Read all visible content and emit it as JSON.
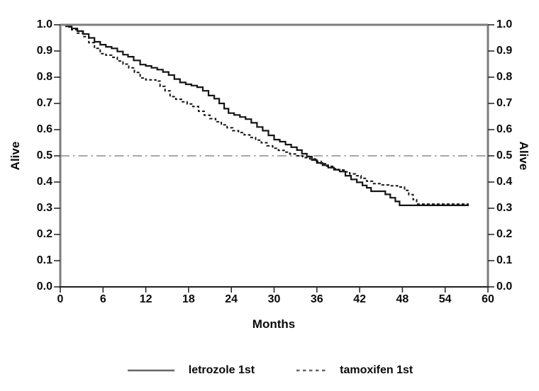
{
  "chart_data": {
    "type": "line",
    "subtype": "kaplan-meier-survival-step",
    "title": "",
    "xlabel": "Months",
    "ylabel_left": "Alive",
    "ylabel_right": "Alive",
    "xlim": [
      0,
      60
    ],
    "ylim": [
      0.0,
      1.0
    ],
    "x_ticks": [
      0,
      6,
      12,
      18,
      24,
      30,
      36,
      42,
      48,
      54,
      60
    ],
    "y_ticks": [
      "0.0",
      "0.1",
      "0.2",
      "0.3",
      "0.4",
      "0.5",
      "0.6",
      "0.7",
      "0.8",
      "0.9",
      "1.0"
    ],
    "grid": "off",
    "legend_position": "bottom-center",
    "reference_line": {
      "y": 0.5,
      "style": "dash-dot"
    },
    "series": [
      {
        "name": "letrozole 1st",
        "line_style": "solid",
        "color": "#141414",
        "points": [
          [
            0,
            1.0
          ],
          [
            0.8,
            0.994
          ],
          [
            1.6,
            0.986
          ],
          [
            2.4,
            0.976
          ],
          [
            3.2,
            0.965
          ],
          [
            4,
            0.95
          ],
          [
            4.8,
            0.935
          ],
          [
            5.6,
            0.924
          ],
          [
            6.4,
            0.916
          ],
          [
            7.2,
            0.91
          ],
          [
            8,
            0.898
          ],
          [
            8.8,
            0.886
          ],
          [
            9.5,
            0.878
          ],
          [
            10.3,
            0.864
          ],
          [
            11.2,
            0.848
          ],
          [
            12,
            0.843
          ],
          [
            12.8,
            0.836
          ],
          [
            13.6,
            0.829
          ],
          [
            14.4,
            0.82
          ],
          [
            15.2,
            0.808
          ],
          [
            16,
            0.793
          ],
          [
            16.8,
            0.78
          ],
          [
            17.6,
            0.773
          ],
          [
            18.4,
            0.768
          ],
          [
            19.2,
            0.762
          ],
          [
            20,
            0.748
          ],
          [
            20.8,
            0.73
          ],
          [
            21.6,
            0.718
          ],
          [
            22.3,
            0.7
          ],
          [
            23,
            0.68
          ],
          [
            23.6,
            0.663
          ],
          [
            24.4,
            0.656
          ],
          [
            25.2,
            0.648
          ],
          [
            26,
            0.64
          ],
          [
            26.8,
            0.626
          ],
          [
            27.6,
            0.61
          ],
          [
            28.4,
            0.596
          ],
          [
            29.2,
            0.578
          ],
          [
            30,
            0.562
          ],
          [
            30.8,
            0.554
          ],
          [
            31.6,
            0.543
          ],
          [
            32.4,
            0.533
          ],
          [
            33.2,
            0.522
          ],
          [
            33.9,
            0.508
          ],
          [
            34.6,
            0.497
          ],
          [
            35.3,
            0.484
          ],
          [
            36,
            0.473
          ],
          [
            36.8,
            0.464
          ],
          [
            37.6,
            0.455
          ],
          [
            38.4,
            0.447
          ],
          [
            39.2,
            0.44
          ],
          [
            40,
            0.424
          ],
          [
            40.8,
            0.41
          ],
          [
            41.6,
            0.399
          ],
          [
            42.4,
            0.387
          ],
          [
            43,
            0.378
          ],
          [
            43.6,
            0.365
          ],
          [
            45.6,
            0.353
          ],
          [
            46.3,
            0.34
          ],
          [
            47,
            0.326
          ],
          [
            47.6,
            0.311
          ],
          [
            57.3,
            0.311
          ]
        ]
      },
      {
        "name": "tamoxifen 1st",
        "line_style": "dashed",
        "color": "#141414",
        "points": [
          [
            0,
            1.0
          ],
          [
            0.8,
            0.992
          ],
          [
            1.6,
            0.981
          ],
          [
            2.4,
            0.968
          ],
          [
            3.2,
            0.955
          ],
          [
            4,
            0.932
          ],
          [
            4.8,
            0.91
          ],
          [
            5.6,
            0.89
          ],
          [
            6.4,
            0.884
          ],
          [
            7.2,
            0.876
          ],
          [
            8,
            0.862
          ],
          [
            8.8,
            0.85
          ],
          [
            9.6,
            0.836
          ],
          [
            10.4,
            0.818
          ],
          [
            11.2,
            0.797
          ],
          [
            12,
            0.79
          ],
          [
            13.4,
            0.785
          ],
          [
            14,
            0.765
          ],
          [
            14.7,
            0.748
          ],
          [
            15.4,
            0.726
          ],
          [
            16.2,
            0.716
          ],
          [
            17,
            0.706
          ],
          [
            17.8,
            0.698
          ],
          [
            18.6,
            0.688
          ],
          [
            19.4,
            0.67
          ],
          [
            20.2,
            0.655
          ],
          [
            21,
            0.642
          ],
          [
            21.8,
            0.63
          ],
          [
            22.6,
            0.618
          ],
          [
            23.4,
            0.607
          ],
          [
            24.2,
            0.596
          ],
          [
            25,
            0.589
          ],
          [
            25.8,
            0.58
          ],
          [
            26.6,
            0.57
          ],
          [
            27.4,
            0.56
          ],
          [
            28.2,
            0.55
          ],
          [
            29,
            0.538
          ],
          [
            29.8,
            0.529
          ],
          [
            30.6,
            0.521
          ],
          [
            31.4,
            0.514
          ],
          [
            32.2,
            0.507
          ],
          [
            33,
            0.5
          ],
          [
            34,
            0.493
          ],
          [
            35,
            0.488
          ],
          [
            35.8,
            0.479
          ],
          [
            36.6,
            0.47
          ],
          [
            37.4,
            0.46
          ],
          [
            38.2,
            0.451
          ],
          [
            39,
            0.446
          ],
          [
            39.8,
            0.439
          ],
          [
            40.6,
            0.431
          ],
          [
            41.4,
            0.424
          ],
          [
            42.2,
            0.414
          ],
          [
            43,
            0.403
          ],
          [
            43.8,
            0.394
          ],
          [
            45,
            0.389
          ],
          [
            46.2,
            0.386
          ],
          [
            47.3,
            0.381
          ],
          [
            48.3,
            0.368
          ],
          [
            48.9,
            0.352
          ],
          [
            49.5,
            0.333
          ],
          [
            50,
            0.316
          ],
          [
            57.3,
            0.316
          ]
        ]
      }
    ]
  },
  "colors": {
    "background": "#ffffff",
    "frame_axis": "#7d7d7d",
    "bottom_axis": "#1f1f1f",
    "tick": "#2a2a2a",
    "text": "#0a0a0a",
    "reference_line": "#8c8c8c",
    "legend_sample": "#666666"
  }
}
